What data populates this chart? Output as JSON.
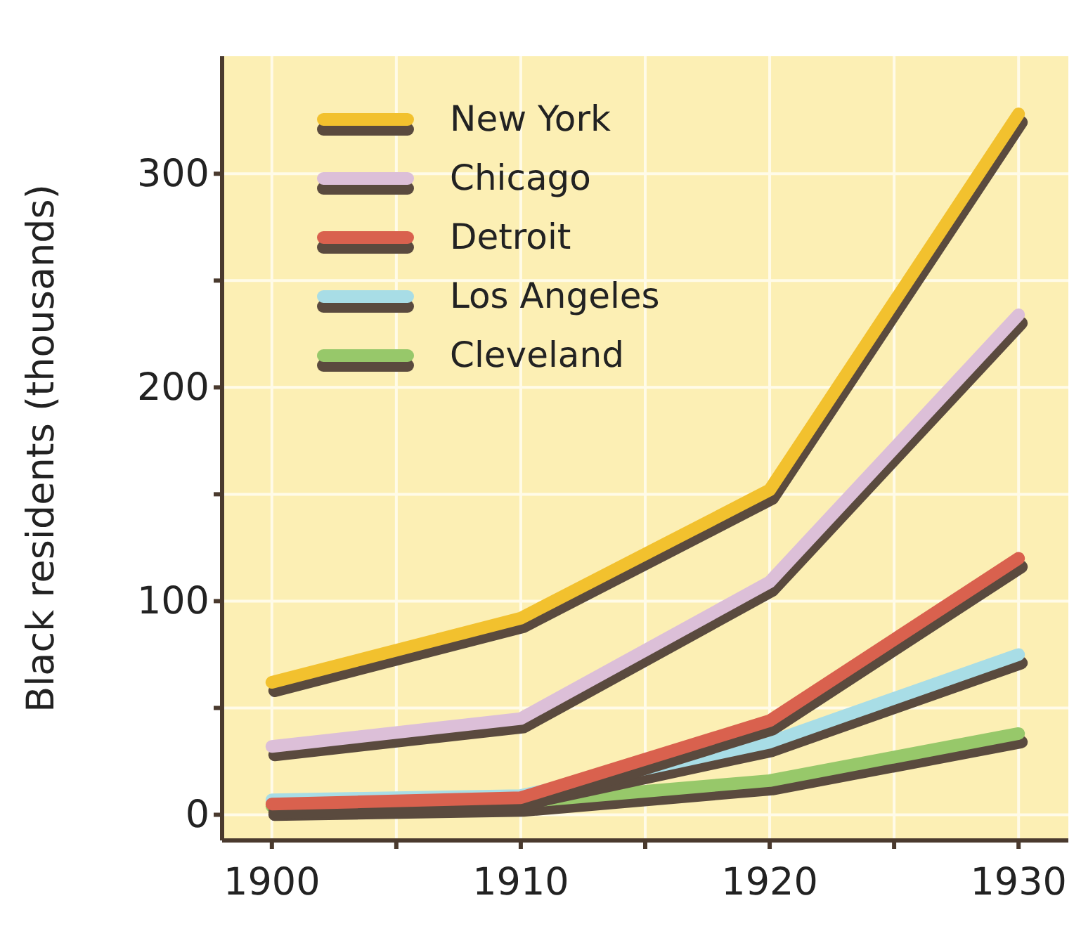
{
  "chart_data": {
    "type": "line",
    "ylabel": "Black residents (thousands)",
    "x": [
      1900,
      1910,
      1920,
      1930
    ],
    "xlim": [
      1898,
      1932
    ],
    "xticks": [
      1900,
      {
        "value": 1905,
        "label": null
      },
      1910,
      {
        "value": 1915,
        "label": null
      },
      1920,
      {
        "value": 1925,
        "label": null
      },
      1930
    ],
    "ylim": [
      -12,
      355
    ],
    "yticks": [
      0,
      {
        "value": 50,
        "label": null
      },
      100,
      {
        "value": 150,
        "label": null
      },
      200,
      {
        "value": 250,
        "label": null
      },
      300
    ],
    "grid": true,
    "legend": "top left",
    "line_style": "solid",
    "marker": "none",
    "series": [
      {
        "name": "New York",
        "color": "#f2c12e",
        "values": [
          62,
          92,
          152,
          328
        ]
      },
      {
        "name": "Chicago",
        "color": "#dcbfd8",
        "values": [
          32,
          45,
          109,
          234
        ]
      },
      {
        "name": "Detroit",
        "color": "#d9614e",
        "values": [
          5,
          8,
          44,
          120
        ]
      },
      {
        "name": "Los Angeles",
        "color": "#a8dde6",
        "values": [
          7,
          9,
          34,
          75
        ]
      },
      {
        "name": "Cleveland",
        "color": "#97c86a",
        "values": [
          4,
          6,
          16,
          38
        ]
      }
    ]
  }
}
